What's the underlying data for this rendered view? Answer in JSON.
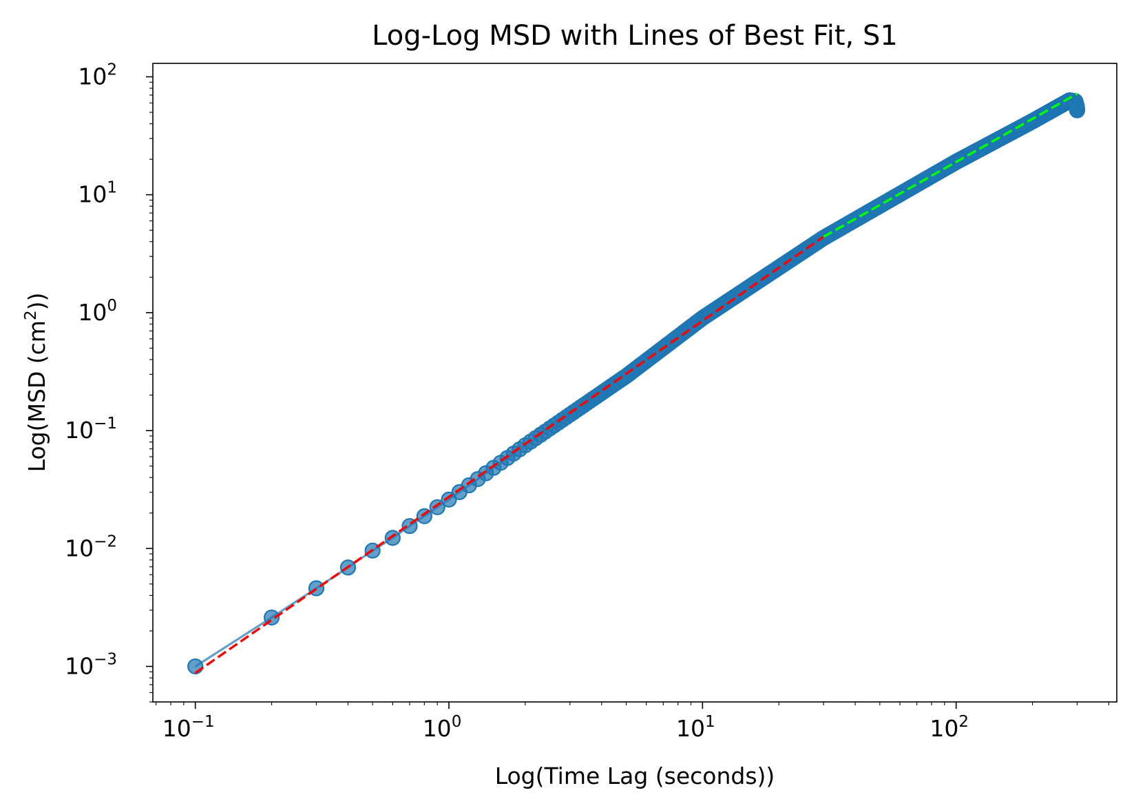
{
  "chart_data": {
    "type": "scatter",
    "title": "Log-Log MSD with Lines of Best Fit, S1",
    "xlabel": "Log(Time Lag (seconds))",
    "ylabel": "Log(MSD (cm²))",
    "ylabel_parts": {
      "pre": "Log(MSD (cm",
      "sup": "2",
      "post": "))"
    },
    "xscale": "log",
    "yscale": "log",
    "xlim": [
      0.068,
      430
    ],
    "ylim": [
      0.0005,
      130
    ],
    "x_ticks": [
      {
        "value": 0.1,
        "base": "10",
        "exp": "−1"
      },
      {
        "value": 1,
        "base": "10",
        "exp": "0"
      },
      {
        "value": 10,
        "base": "10",
        "exp": "1"
      },
      {
        "value": 100,
        "base": "10",
        "exp": "2"
      }
    ],
    "y_ticks": [
      {
        "value": 0.001,
        "base": "10",
        "exp": "−3"
      },
      {
        "value": 0.01,
        "base": "10",
        "exp": "−2"
      },
      {
        "value": 0.1,
        "base": "10",
        "exp": "−1"
      },
      {
        "value": 1,
        "base": "10",
        "exp": "0"
      },
      {
        "value": 10,
        "base": "10",
        "exp": "1"
      },
      {
        "value": 100,
        "base": "10",
        "exp": "2"
      }
    ],
    "grid": false,
    "legend": "none",
    "colors": {
      "points": "#1f77b4",
      "fit_short": "#ff0000",
      "fit_long": "#00ff00"
    },
    "msd_anchors": [
      {
        "x": 0.1,
        "y": 0.001
      },
      {
        "x": 0.2,
        "y": 0.0026
      },
      {
        "x": 0.3,
        "y": 0.0046
      },
      {
        "x": 0.4,
        "y": 0.0069
      },
      {
        "x": 0.5,
        "y": 0.0096
      },
      {
        "x": 0.6,
        "y": 0.0123
      },
      {
        "x": 0.7,
        "y": 0.0155
      },
      {
        "x": 0.8,
        "y": 0.0188
      },
      {
        "x": 0.9,
        "y": 0.0224
      },
      {
        "x": 1.0,
        "y": 0.026
      },
      {
        "x": 2.0,
        "y": 0.075
      },
      {
        "x": 5.0,
        "y": 0.29
      },
      {
        "x": 10,
        "y": 0.9
      },
      {
        "x": 30,
        "y": 4.3
      },
      {
        "x": 100,
        "y": 19
      },
      {
        "x": 200,
        "y": 42
      },
      {
        "x": 280,
        "y": 63
      },
      {
        "x": 295,
        "y": 62
      },
      {
        "x": 299,
        "y": 56
      },
      {
        "x": 300,
        "y": 52
      }
    ],
    "fit_lines": [
      {
        "style": "dashed",
        "color": "#ff0000",
        "x": [
          0.1,
          30
        ],
        "y": [
          0.00088,
          4.4
        ]
      },
      {
        "style": "dashed",
        "color": "#00ff00",
        "x": [
          30,
          300
        ],
        "y": [
          4.4,
          72
        ]
      }
    ]
  }
}
